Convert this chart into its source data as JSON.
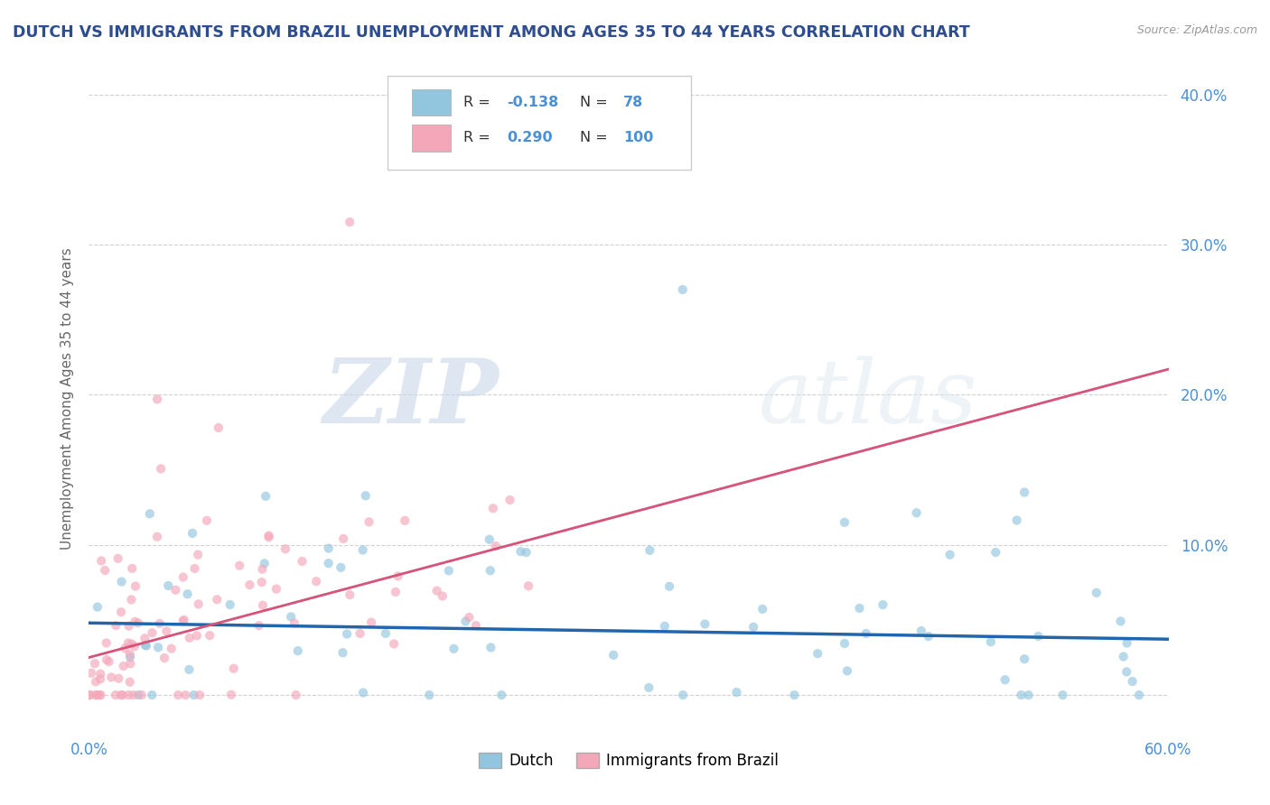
{
  "title": "DUTCH VS IMMIGRANTS FROM BRAZIL UNEMPLOYMENT AMONG AGES 35 TO 44 YEARS CORRELATION CHART",
  "source": "Source: ZipAtlas.com",
  "ylabel": "Unemployment Among Ages 35 to 44 years",
  "xmin": 0.0,
  "xmax": 0.6,
  "ymin": -0.025,
  "ymax": 0.42,
  "yticks": [
    0.0,
    0.1,
    0.2,
    0.3,
    0.4
  ],
  "ytick_labels": [
    "",
    "10.0%",
    "20.0%",
    "30.0%",
    "40.0%"
  ],
  "xticks": [
    0.0,
    0.1,
    0.2,
    0.3,
    0.4,
    0.5,
    0.6
  ],
  "xtick_labels": [
    "0.0%",
    "",
    "",
    "",
    "",
    "",
    "60.0%"
  ],
  "dutch_color": "#92c5de",
  "brazil_color": "#f4a7b9",
  "dutch_line_color": "#2166ac",
  "brazil_line_color": "#d6547a",
  "dutch_R": -0.138,
  "dutch_N": 78,
  "brazil_R": 0.29,
  "brazil_N": 100,
  "legend_dutch_label": "Dutch",
  "legend_brazil_label": "Immigrants from Brazil",
  "watermark_zip": "ZIP",
  "watermark_atlas": "atlas",
  "background_color": "#ffffff",
  "grid_color": "#cccccc",
  "title_color": "#2d4d8e",
  "axis_label_color": "#666666",
  "tick_label_color": "#4a90d9",
  "legend_R_color": "#333333",
  "scatter_size": 55,
  "dutch_alpha": 0.65,
  "brazil_alpha": 0.65,
  "dutch_trend_intercept": 0.048,
  "dutch_trend_slope": -0.018,
  "brazil_trend_intercept": 0.025,
  "brazil_trend_slope": 0.32
}
